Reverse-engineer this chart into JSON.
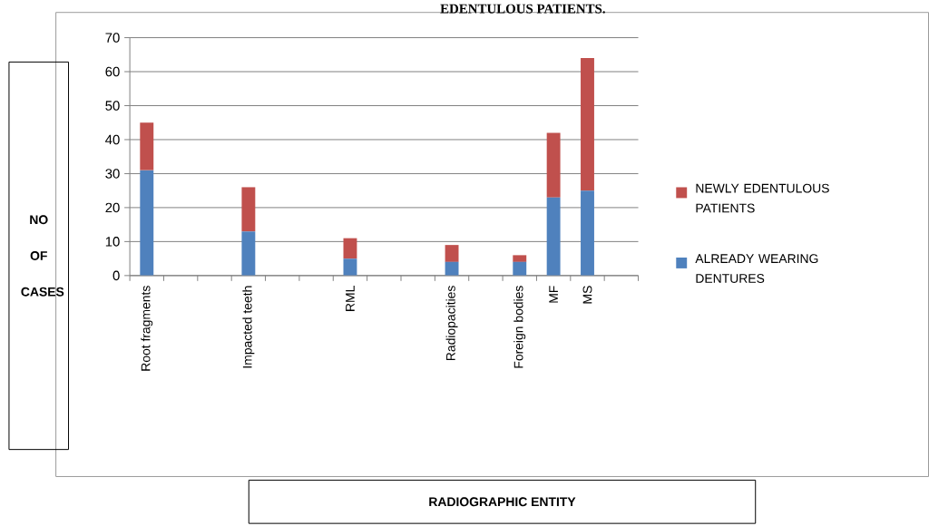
{
  "chart_data": {
    "type": "bar",
    "title": "EDENTULOUS PATIENTS.",
    "annotations": [
      "RADIOGRAPHIC  ENTITY"
    ],
    "ylabel": "NO OF CASES",
    "categories": [
      "Root fragments",
      null,
      null,
      "Impacted teeth",
      null,
      null,
      "RML",
      null,
      null,
      "Radiopacities",
      null,
      "Foreign bodies",
      "MF",
      "MS",
      null
    ],
    "series": [
      {
        "name": "ALREADY WEARING DENTURES",
        "color": "#4f81bd",
        "values": [
          31,
          null,
          null,
          13,
          null,
          null,
          5,
          null,
          null,
          4,
          null,
          4,
          23,
          25,
          null
        ]
      },
      {
        "name": "NEWLY EDENTULOUS PATIENTS",
        "color": "#c0504d",
        "values": [
          14,
          null,
          null,
          13,
          null,
          null,
          6,
          null,
          null,
          5,
          null,
          2,
          19,
          39,
          null
        ]
      }
    ],
    "stacked": true,
    "ylim": [
      0,
      70
    ],
    "yticks": [
      0,
      10,
      20,
      30,
      40,
      50,
      60,
      70
    ],
    "grid": "y",
    "legend": "right"
  }
}
